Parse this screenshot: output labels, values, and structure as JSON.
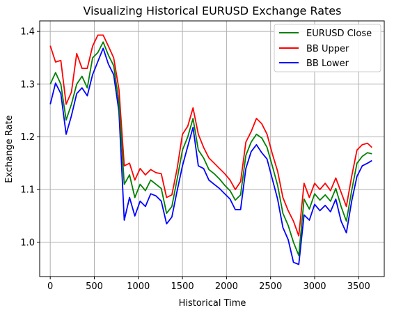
{
  "chart_data": {
    "type": "line",
    "title": "Visualizing Historical EURUSD Exchange Rates",
    "xlabel": "Historical Time",
    "ylabel": "Exchange Rate",
    "xlim": [
      -120,
      3790
    ],
    "ylim": [
      0.935,
      1.42
    ],
    "xticks": [
      0,
      500,
      1000,
      1500,
      2000,
      2500,
      3000,
      3500
    ],
    "yticks": [
      1.0,
      1.1,
      1.2,
      1.3,
      1.4
    ],
    "ytick_labels": [
      "1.0",
      "1.1",
      "1.2",
      "1.3",
      "1.4"
    ],
    "grid": true,
    "legend_position": "top-right",
    "x": [
      0,
      60,
      120,
      180,
      240,
      300,
      360,
      420,
      480,
      540,
      600,
      660,
      720,
      780,
      840,
      900,
      960,
      1020,
      1080,
      1140,
      1200,
      1260,
      1320,
      1380,
      1440,
      1500,
      1560,
      1620,
      1680,
      1740,
      1800,
      1860,
      1920,
      1980,
      2040,
      2100,
      2160,
      2220,
      2280,
      2340,
      2400,
      2460,
      2520,
      2580,
      2640,
      2700,
      2760,
      2820,
      2880,
      2940,
      3000,
      3060,
      3120,
      3180,
      3240,
      3300,
      3360,
      3420,
      3480,
      3540,
      3600,
      3650
    ],
    "series": [
      {
        "name": "EURUSD Close",
        "color": "#008000",
        "values": [
          1.3,
          1.322,
          1.3,
          1.232,
          1.262,
          1.3,
          1.315,
          1.293,
          1.35,
          1.36,
          1.38,
          1.355,
          1.335,
          1.265,
          1.11,
          1.128,
          1.085,
          1.11,
          1.098,
          1.118,
          1.11,
          1.102,
          1.055,
          1.068,
          1.12,
          1.175,
          1.2,
          1.235,
          1.175,
          1.16,
          1.138,
          1.13,
          1.12,
          1.108,
          1.098,
          1.08,
          1.09,
          1.165,
          1.19,
          1.205,
          1.198,
          1.18,
          1.145,
          1.108,
          1.055,
          1.032,
          1.0,
          0.975,
          1.082,
          1.063,
          1.092,
          1.08,
          1.09,
          1.078,
          1.102,
          1.068,
          1.04,
          1.098,
          1.15,
          1.163,
          1.17,
          1.168
        ]
      },
      {
        "name": "BB Upper",
        "color": "#ff0000",
        "values": [
          1.373,
          1.342,
          1.345,
          1.262,
          1.285,
          1.358,
          1.33,
          1.33,
          1.372,
          1.393,
          1.393,
          1.372,
          1.35,
          1.29,
          1.145,
          1.15,
          1.118,
          1.14,
          1.128,
          1.138,
          1.132,
          1.13,
          1.085,
          1.09,
          1.14,
          1.205,
          1.22,
          1.255,
          1.205,
          1.18,
          1.16,
          1.15,
          1.14,
          1.13,
          1.118,
          1.1,
          1.115,
          1.19,
          1.21,
          1.235,
          1.225,
          1.205,
          1.168,
          1.135,
          1.085,
          1.06,
          1.04,
          1.012,
          1.112,
          1.085,
          1.112,
          1.1,
          1.112,
          1.098,
          1.122,
          1.095,
          1.068,
          1.125,
          1.175,
          1.185,
          1.188,
          1.18
        ]
      },
      {
        "name": "BB Lower",
        "color": "#0000ff",
        "values": [
          1.262,
          1.302,
          1.282,
          1.205,
          1.24,
          1.282,
          1.293,
          1.278,
          1.318,
          1.343,
          1.368,
          1.338,
          1.318,
          1.248,
          1.042,
          1.085,
          1.05,
          1.078,
          1.068,
          1.092,
          1.088,
          1.078,
          1.035,
          1.048,
          1.098,
          1.145,
          1.182,
          1.218,
          1.145,
          1.14,
          1.118,
          1.11,
          1.102,
          1.092,
          1.082,
          1.062,
          1.062,
          1.14,
          1.172,
          1.185,
          1.17,
          1.158,
          1.12,
          1.082,
          1.028,
          1.005,
          0.962,
          0.958,
          1.052,
          1.042,
          1.072,
          1.06,
          1.07,
          1.058,
          1.082,
          1.04,
          1.018,
          1.078,
          1.125,
          1.145,
          1.15,
          1.155
        ]
      }
    ]
  }
}
